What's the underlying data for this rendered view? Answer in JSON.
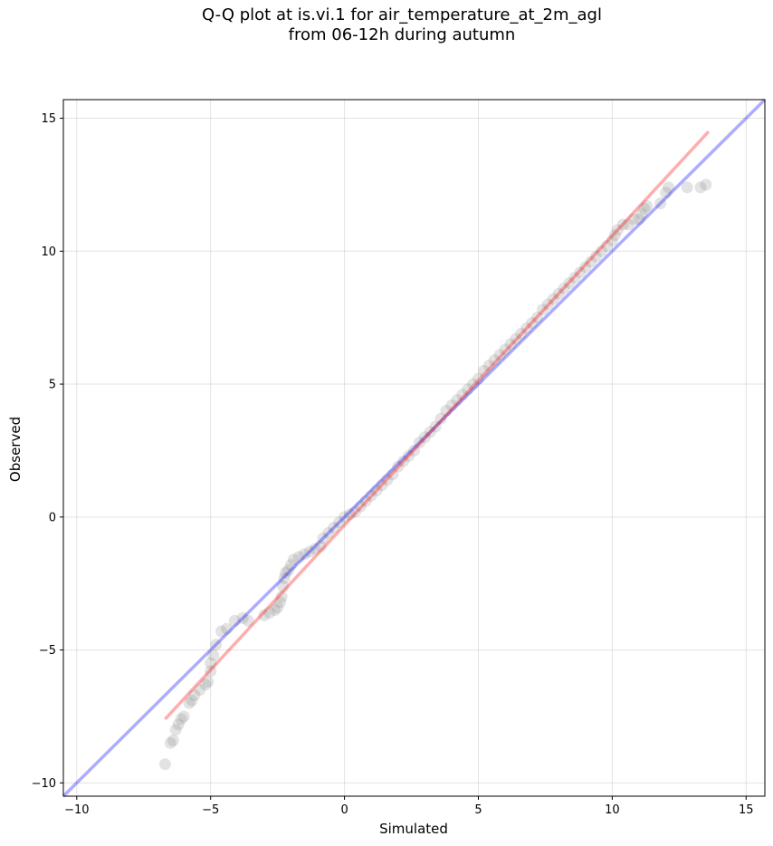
{
  "chart_data": {
    "type": "scatter",
    "title_line1": "Q-Q plot at is.vi.1 for air_temperature_at_2m_agl",
    "title_line2": "from 06-12h during autumn",
    "xlabel": "Simulated",
    "ylabel": "Observed",
    "xlim": [
      -10.5,
      15.7
    ],
    "ylim": [
      -10.5,
      15.7
    ],
    "xticks": [
      -10,
      -5,
      0,
      5,
      10,
      15
    ],
    "yticks": [
      -10,
      -5,
      0,
      5,
      10,
      15
    ],
    "tick_labels_x": [
      "−10",
      "−5",
      "0",
      "5",
      "10",
      "15"
    ],
    "tick_labels_y": [
      "−10",
      "−5",
      "0",
      "5",
      "10",
      "15"
    ],
    "grid": true,
    "reference_line": {
      "name": "1:1",
      "color": "#0000ff",
      "x": [
        -10.5,
        15.7
      ],
      "y": [
        -10.5,
        15.7
      ]
    },
    "fit_line": {
      "name": "fit",
      "color": "#ff0000",
      "x": [
        -6.7,
        13.6
      ],
      "y": [
        -7.6,
        14.5
      ]
    },
    "point_color": "#7f7f7f",
    "points": [
      [
        -6.7,
        -9.3
      ],
      [
        -6.5,
        -8.5
      ],
      [
        -6.4,
        -8.4
      ],
      [
        -6.3,
        -8.0
      ],
      [
        -6.2,
        -7.8
      ],
      [
        -6.1,
        -7.6
      ],
      [
        -6.0,
        -7.5
      ],
      [
        -5.8,
        -7.0
      ],
      [
        -5.7,
        -6.9
      ],
      [
        -5.6,
        -6.7
      ],
      [
        -5.4,
        -6.5
      ],
      [
        -5.2,
        -6.3
      ],
      [
        -5.1,
        -6.2
      ],
      [
        -5.0,
        -5.8
      ],
      [
        -5.0,
        -5.5
      ],
      [
        -4.9,
        -5.2
      ],
      [
        -4.8,
        -4.8
      ],
      [
        -4.6,
        -4.3
      ],
      [
        -4.4,
        -4.2
      ],
      [
        -4.1,
        -3.9
      ],
      [
        -3.8,
        -3.8
      ],
      [
        -3.6,
        -3.9
      ],
      [
        -3.0,
        -3.7
      ],
      [
        -2.8,
        -3.6
      ],
      [
        -2.6,
        -3.5
      ],
      [
        -2.5,
        -3.4
      ],
      [
        -2.4,
        -3.2
      ],
      [
        -2.35,
        -3.0
      ],
      [
        -2.3,
        -2.6
      ],
      [
        -2.25,
        -2.3
      ],
      [
        -2.2,
        -2.1
      ],
      [
        -2.1,
        -2.0
      ],
      [
        -2.0,
        -1.8
      ],
      [
        -1.9,
        -1.6
      ],
      [
        -1.7,
        -1.5
      ],
      [
        -1.5,
        -1.4
      ],
      [
        -1.3,
        -1.3
      ],
      [
        -1.1,
        -1.2
      ],
      [
        -0.9,
        -1.1
      ],
      [
        -0.8,
        -0.8
      ],
      [
        -0.6,
        -0.6
      ],
      [
        -0.4,
        -0.4
      ],
      [
        -0.2,
        -0.2
      ],
      [
        0.0,
        0.0
      ],
      [
        0.2,
        0.1
      ],
      [
        0.4,
        0.2
      ],
      [
        0.6,
        0.4
      ],
      [
        0.8,
        0.6
      ],
      [
        1.0,
        0.8
      ],
      [
        1.2,
        1.0
      ],
      [
        1.4,
        1.2
      ],
      [
        1.6,
        1.4
      ],
      [
        1.8,
        1.6
      ],
      [
        2.0,
        1.9
      ],
      [
        2.2,
        2.1
      ],
      [
        2.4,
        2.3
      ],
      [
        2.6,
        2.5
      ],
      [
        2.8,
        2.8
      ],
      [
        3.0,
        3.0
      ],
      [
        3.2,
        3.2
      ],
      [
        3.4,
        3.4
      ],
      [
        3.6,
        3.7
      ],
      [
        3.8,
        4.0
      ],
      [
        4.0,
        4.2
      ],
      [
        4.2,
        4.4
      ],
      [
        4.4,
        4.6
      ],
      [
        4.6,
        4.8
      ],
      [
        4.8,
        5.0
      ],
      [
        5.0,
        5.2
      ],
      [
        5.2,
        5.5
      ],
      [
        5.4,
        5.7
      ],
      [
        5.6,
        5.9
      ],
      [
        5.8,
        6.1
      ],
      [
        6.0,
        6.3
      ],
      [
        6.2,
        6.5
      ],
      [
        6.4,
        6.7
      ],
      [
        6.6,
        6.9
      ],
      [
        6.8,
        7.1
      ],
      [
        7.0,
        7.3
      ],
      [
        7.2,
        7.5
      ],
      [
        7.4,
        7.8
      ],
      [
        7.6,
        8.0
      ],
      [
        7.8,
        8.2
      ],
      [
        8.0,
        8.4
      ],
      [
        8.2,
        8.6
      ],
      [
        8.4,
        8.8
      ],
      [
        8.6,
        9.0
      ],
      [
        8.8,
        9.2
      ],
      [
        9.0,
        9.4
      ],
      [
        9.2,
        9.6
      ],
      [
        9.4,
        9.8
      ],
      [
        9.6,
        10.0
      ],
      [
        9.8,
        10.2
      ],
      [
        10.0,
        10.4
      ],
      [
        10.1,
        10.6
      ],
      [
        10.2,
        10.8
      ],
      [
        10.4,
        11.0
      ],
      [
        10.6,
        11.0
      ],
      [
        10.8,
        11.2
      ],
      [
        11.0,
        11.2
      ],
      [
        11.1,
        11.4
      ],
      [
        11.2,
        11.6
      ],
      [
        11.3,
        11.7
      ],
      [
        11.8,
        11.8
      ],
      [
        12.0,
        12.2
      ],
      [
        12.1,
        12.4
      ],
      [
        12.8,
        12.4
      ],
      [
        13.3,
        12.4
      ],
      [
        13.5,
        12.5
      ]
    ]
  }
}
